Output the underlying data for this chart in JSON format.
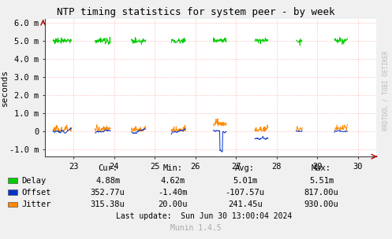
{
  "title": "NTP timing statistics for system peer - by week",
  "ylabel": "seconds",
  "bg_color": "#f0f0f0",
  "plot_bg_color": "#ffffff",
  "grid_color": "#ffaaaa",
  "x_min": 22.3,
  "x_max": 30.45,
  "y_min": -0.0014,
  "y_max": 0.0062,
  "x_ticks": [
    23,
    24,
    25,
    26,
    27,
    28,
    29,
    30
  ],
  "y_ticks": [
    -0.001,
    0.0,
    0.001,
    0.002,
    0.003,
    0.004,
    0.005,
    0.006
  ],
  "y_tick_labels": [
    "-1.0 m",
    "0",
    "1.0 m",
    "2.0 m",
    "3.0 m",
    "4.0 m",
    "5.0 m",
    "6.0 m"
  ],
  "delay_color": "#00cc00",
  "offset_color": "#0033cc",
  "jitter_color": "#ff8800",
  "rrdtool_text": "RRDTOOL / TOBI OETIKER",
  "legend_labels": [
    "Delay",
    "Offset",
    "Jitter"
  ],
  "cur_label": "Cur:",
  "min_label": "Min:",
  "avg_label": "Avg:",
  "max_label": "Max:",
  "delay_cur": "4.88m",
  "delay_min": "4.62m",
  "delay_avg": "5.01m",
  "delay_max": "5.51m",
  "offset_cur": "352.77u",
  "offset_min": "-1.40m",
  "offset_avg": "-107.57u",
  "offset_max": "817.00u",
  "jitter_cur": "315.38u",
  "jitter_min": "20.00u",
  "jitter_avg": "241.45u",
  "jitter_max": "930.00u",
  "last_update": "Last update:  Sun Jun 30 13:00:04 2024",
  "munin_version": "Munin 1.4.5"
}
